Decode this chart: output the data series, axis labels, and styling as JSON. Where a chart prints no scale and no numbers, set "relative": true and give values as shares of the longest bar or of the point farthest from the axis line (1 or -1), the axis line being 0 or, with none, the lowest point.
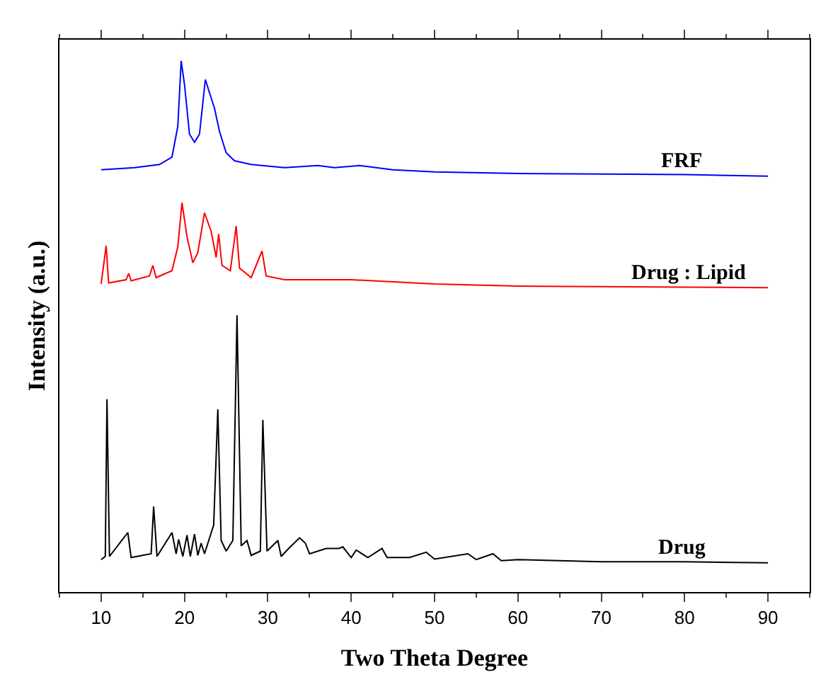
{
  "chart_data": {
    "type": "line",
    "xlabel": "Two Theta Degree",
    "ylabel": "Intensity (a.u.)",
    "relative": true,
    "xlim": [
      5,
      95
    ],
    "xticks": [
      10,
      20,
      30,
      40,
      50,
      60,
      70,
      80,
      90
    ],
    "legend": false,
    "marker": "none",
    "line_style": "solid",
    "series": [
      {
        "name": "FRF",
        "color": "#0000ff",
        "x": [
          10,
          14,
          17,
          18.5,
          19.2,
          19.6,
          20.0,
          20.6,
          21.2,
          21.8,
          22.5,
          23.0,
          23.6,
          24.2,
          25,
          26,
          28,
          32,
          36,
          38,
          41,
          45,
          50,
          60,
          70,
          80,
          90
        ],
        "values": [
          0.795,
          0.799,
          0.805,
          0.819,
          0.877,
          1.0,
          0.956,
          0.862,
          0.847,
          0.862,
          0.965,
          0.94,
          0.911,
          0.867,
          0.827,
          0.812,
          0.805,
          0.799,
          0.803,
          0.799,
          0.803,
          0.795,
          0.791,
          0.788,
          0.787,
          0.786,
          0.783
        ]
      },
      {
        "name": "Drug : Lipid",
        "color": "#ff0000",
        "x": [
          10,
          10.6,
          10.9,
          13,
          13.3,
          13.6,
          15.8,
          16.2,
          16.6,
          18.5,
          19.2,
          19.7,
          20.3,
          21,
          21.6,
          22.4,
          23.2,
          23.8,
          24.1,
          24.5,
          25.5,
          26.2,
          26.6,
          28,
          29.3,
          29.8,
          32,
          40,
          50,
          60,
          70,
          80,
          90
        ],
        "values": [
          0.58,
          0.652,
          0.582,
          0.588,
          0.6,
          0.586,
          0.595,
          0.615,
          0.592,
          0.605,
          0.65,
          0.733,
          0.669,
          0.62,
          0.639,
          0.714,
          0.679,
          0.63,
          0.674,
          0.615,
          0.605,
          0.689,
          0.61,
          0.592,
          0.642,
          0.595,
          0.588,
          0.588,
          0.58,
          0.576,
          0.575,
          0.574,
          0.573
        ]
      },
      {
        "name": "Drug",
        "color": "#000000",
        "x": [
          10,
          10.5,
          10.7,
          11.0,
          13.2,
          13.6,
          16.0,
          16.3,
          16.7,
          18.5,
          19,
          19.3,
          19.8,
          20.3,
          20.7,
          21.2,
          21.6,
          22,
          22.4,
          23.5,
          24.0,
          24.4,
          25,
          25.8,
          26.3,
          26.8,
          27.5,
          28,
          29.1,
          29.4,
          29.9,
          31.2,
          31.6,
          32.5,
          33.8,
          34.5,
          35,
          37,
          38.5,
          39,
          40,
          40.6,
          42,
          43.7,
          44.3,
          47,
          49,
          50,
          54,
          55,
          57,
          58,
          60,
          70,
          80,
          90
        ],
        "values": [
          0.061,
          0.067,
          0.363,
          0.067,
          0.112,
          0.065,
          0.072,
          0.161,
          0.067,
          0.112,
          0.072,
          0.099,
          0.067,
          0.107,
          0.067,
          0.109,
          0.069,
          0.092,
          0.072,
          0.126,
          0.344,
          0.097,
          0.077,
          0.097,
          0.521,
          0.087,
          0.097,
          0.069,
          0.077,
          0.324,
          0.077,
          0.097,
          0.067,
          0.082,
          0.102,
          0.092,
          0.072,
          0.082,
          0.082,
          0.085,
          0.065,
          0.079,
          0.065,
          0.082,
          0.065,
          0.065,
          0.075,
          0.062,
          0.072,
          0.061,
          0.072,
          0.059,
          0.061,
          0.057,
          0.057,
          0.055
        ]
      }
    ]
  }
}
